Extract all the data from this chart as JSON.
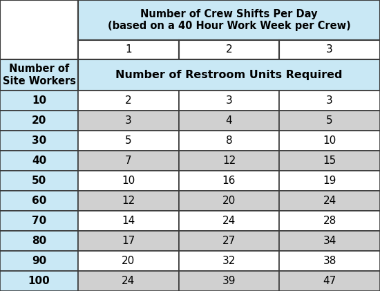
{
  "title_line1": "Number of Crew Shifts Per Day",
  "title_line2": "(based on a 40 Hour Work Week per Crew)",
  "col_header_label": "Number of\nSite Workers",
  "data_header_label": "Number of Restroom Units Required",
  "shift_cols": [
    "1",
    "2",
    "3"
  ],
  "workers": [
    10,
    20,
    30,
    40,
    50,
    60,
    70,
    80,
    90,
    100
  ],
  "values": [
    [
      2,
      3,
      3
    ],
    [
      3,
      4,
      5
    ],
    [
      5,
      8,
      10
    ],
    [
      7,
      12,
      15
    ],
    [
      10,
      16,
      19
    ],
    [
      12,
      20,
      24
    ],
    [
      14,
      24,
      28
    ],
    [
      17,
      27,
      34
    ],
    [
      20,
      32,
      38
    ],
    [
      24,
      39,
      47
    ]
  ],
  "color_light_blue": "#c9e8f5",
  "color_light_gray": "#d0d0d0",
  "color_white": "#ffffff",
  "color_border": "#3a3a3a",
  "fig_width": 5.5,
  "fig_height": 4.21,
  "dpi": 100
}
